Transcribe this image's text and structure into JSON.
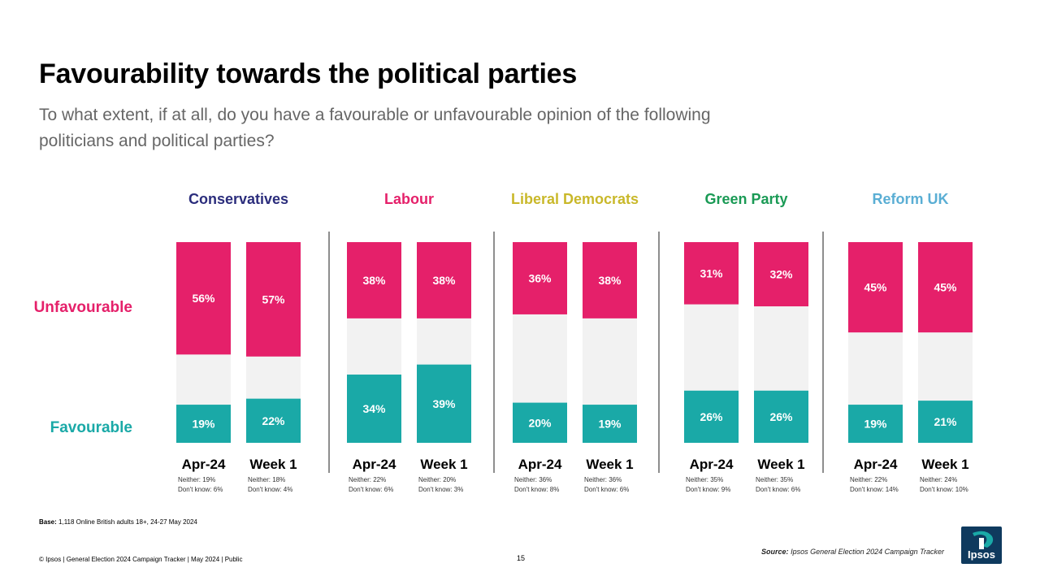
{
  "title": "Favourability towards the political parties",
  "subtitle": "To what extent, if at all, do you have a favourable or unfavourable opinion of the following politicians and political parties?",
  "labels": {
    "unfavourable": "Unfavourable",
    "favourable": "Favourable"
  },
  "colors": {
    "unfavourable": "#e5206a",
    "favourable": "#1aa9a7",
    "neither": "#f2f2f2",
    "conservatives": "#2b2d7c",
    "labour": "#e5206a",
    "libdem": "#c9b82a",
    "green": "#1a9a55",
    "reform": "#5aaed4",
    "divider": "#444444",
    "logo": "#0f3a5e"
  },
  "chart_data": {
    "type": "bar",
    "stacked": true,
    "unit": "%",
    "title": "Favourability towards the political parties",
    "series_names": [
      "Unfavourable",
      "Neither / Don't know",
      "Favourable"
    ],
    "groups": [
      {
        "party": "Conservatives",
        "color_key": "conservatives",
        "bars": [
          {
            "label": "Apr-24",
            "unfavourable": 56,
            "favourable": 19,
            "note1": "Neither: 19%",
            "note2": "Don't know: 6%"
          },
          {
            "label": "Week 1",
            "unfavourable": 57,
            "favourable": 22,
            "note1": "Neither: 18%",
            "note2": "Don't know: 4%"
          }
        ]
      },
      {
        "party": "Labour",
        "color_key": "labour",
        "bars": [
          {
            "label": "Apr-24",
            "unfavourable": 38,
            "favourable": 34,
            "note1": "Neither: 22%",
            "note2": "Don't know: 6%"
          },
          {
            "label": "Week 1",
            "unfavourable": 38,
            "favourable": 39,
            "note1": "Neither: 20%",
            "note2": "Don't know: 3%"
          }
        ]
      },
      {
        "party": "Liberal Democrats",
        "color_key": "libdem",
        "bars": [
          {
            "label": "Apr-24",
            "unfavourable": 36,
            "favourable": 20,
            "note1": "Neither: 36%",
            "note2": "Don't know: 8%"
          },
          {
            "label": "Week 1",
            "unfavourable": 38,
            "favourable": 19,
            "note1": "Neither: 36%",
            "note2": "Don't know: 6%"
          }
        ]
      },
      {
        "party": "Green Party",
        "color_key": "green",
        "bars": [
          {
            "label": "Apr-24",
            "unfavourable": 31,
            "favourable": 26,
            "note1": "Neither: 35%",
            "note2": "Don't know: 9%"
          },
          {
            "label": "Week 1",
            "unfavourable": 32,
            "favourable": 26,
            "note1": "Neither: 35%",
            "note2": "Don't know: 6%"
          }
        ]
      },
      {
        "party": "Reform UK",
        "color_key": "reform",
        "bars": [
          {
            "label": "Apr-24",
            "unfavourable": 45,
            "favourable": 19,
            "note1": "Neither: 22%",
            "note2": "Don't know: 14%"
          },
          {
            "label": "Week 1",
            "unfavourable": 45,
            "favourable": 21,
            "note1": "Neither: 24%",
            "note2": "Don't know: 10%"
          }
        ]
      }
    ]
  },
  "base": {
    "label": "Base:",
    "text": "1,118 Online British  adults 18+, 24-27 May 2024"
  },
  "footer": "© Ipsos | General Election 2024 Campaign  Tracker | May 2024 | Public",
  "page_number": "15",
  "source": {
    "label": "Source:",
    "text": "Ipsos General Election 2024 Campaign Tracker"
  },
  "logo_text": "Ipsos"
}
